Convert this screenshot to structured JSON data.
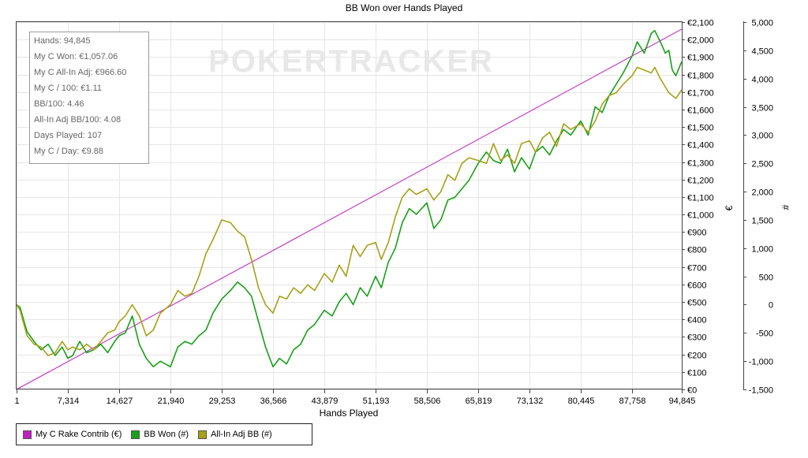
{
  "stats": {
    "hands": "Hands: 94,845",
    "won": "My C Won: €1,057.06",
    "allin_adj": "My C All-In Adj: €966.60",
    "per100": "My C / 100: €1.11",
    "bb100": "BB/100: 4.46",
    "allin_bb100": "All-In Adj BB/100: 4.08",
    "days": "Days Played: 107",
    "perday": "My C / Day: €9.88"
  },
  "watermark": "POKERTRACKER",
  "legend": {
    "rake": "My C Rake Contrib (€)",
    "bbwon": "BB Won (#)",
    "allin": "All-In Adj BB (#)"
  },
  "colors": {
    "rake": "#c020c0",
    "bbwon": "#18a018",
    "allin": "#a8a018",
    "grid": "#e6e6e6"
  },
  "chart_data": {
    "type": "line",
    "title": "BB Won over Hands Played",
    "xlabel": "Hands Played",
    "ylabel_left": "€",
    "ylabel_right": "#",
    "xlim": [
      1,
      94845
    ],
    "ylim_left": [
      0,
      2100
    ],
    "ylim_right": [
      -1500,
      5000
    ],
    "x_ticks": [
      1,
      7314,
      14627,
      21940,
      29253,
      36566,
      43879,
      51193,
      58506,
      65819,
      73132,
      80445,
      87758,
      94845
    ],
    "x_tick_labels": [
      "1",
      "7,314",
      "14,627",
      "21,940",
      "29,253",
      "36,566",
      "43,879",
      "51,193",
      "58,506",
      "65,819",
      "73,132",
      "80,445",
      "87,758",
      "94,845"
    ],
    "y_left_ticks": [
      0,
      100,
      200,
      300,
      400,
      500,
      600,
      700,
      800,
      900,
      1000,
      1100,
      1200,
      1300,
      1400,
      1500,
      1600,
      1700,
      1800,
      1900,
      2000,
      2100
    ],
    "y_left_tick_labels": [
      "€0",
      "€100",
      "€200",
      "€300",
      "€400",
      "€500",
      "€600",
      "€700",
      "€800",
      "€900",
      "€1,000",
      "€1,100",
      "€1,200",
      "€1,300",
      "€1,400",
      "€1,500",
      "€1,600",
      "€1,700",
      "€1,800",
      "€1,900",
      "€2,000",
      "€2,100"
    ],
    "y_right_ticks": [
      -1500,
      -1000,
      -500,
      0,
      500,
      1000,
      1500,
      2000,
      2500,
      3000,
      3500,
      4000,
      4500,
      5000
    ],
    "y_right_tick_labels": [
      "-1,500",
      "-1,000",
      "-500",
      "0",
      "500",
      "1,000",
      "1,500",
      "2,000",
      "2,500",
      "3,000",
      "3,500",
      "4,000",
      "4,500",
      "5,000"
    ],
    "grid": true,
    "legend_position": "bottom-left",
    "series": [
      {
        "name": "My C Rake Contrib (€)",
        "axis": "left",
        "x": [
          1,
          94845
        ],
        "y": [
          0,
          2060
        ]
      },
      {
        "name": "BB Won (#)",
        "axis": "right",
        "x": [
          1,
          500,
          1500,
          2500,
          3500,
          4500,
          5500,
          6500,
          7314,
          8000,
          9000,
          10000,
          11000,
          12000,
          13000,
          14000,
          14627,
          15500,
          16500,
          17500,
          18500,
          19500,
          20500,
          21940,
          23000,
          24000,
          25000,
          26000,
          27000,
          28000,
          29253,
          30500,
          31500,
          32500,
          33500,
          34500,
          35500,
          36566,
          37500,
          38500,
          39500,
          40500,
          41500,
          42500,
          43879,
          45000,
          46000,
          47000,
          48000,
          49000,
          50000,
          51193,
          52000,
          53000,
          54000,
          55000,
          56000,
          57000,
          58506,
          59500,
          60500,
          61500,
          62500,
          63500,
          64500,
          65819,
          67000,
          68000,
          69000,
          70000,
          71000,
          72000,
          73132,
          74000,
          75000,
          76000,
          77000,
          78000,
          79000,
          80445,
          81500,
          82500,
          83500,
          84500,
          85500,
          86500,
          87758,
          88500,
          89500,
          90500,
          91000,
          91800,
          92500,
          93000,
          93500,
          94000,
          94845
        ],
        "y": [
          0,
          -50,
          -480,
          -650,
          -800,
          -700,
          -900,
          -750,
          -950,
          -900,
          -650,
          -850,
          -800,
          -700,
          -850,
          -650,
          -550,
          -500,
          -200,
          -700,
          -950,
          -1100,
          -1000,
          -1100,
          -750,
          -650,
          -700,
          -550,
          -450,
          -150,
          100,
          250,
          400,
          300,
          150,
          -300,
          -750,
          -1100,
          -950,
          -1050,
          -800,
          -700,
          -450,
          -350,
          -100,
          -200,
          50,
          200,
          0,
          300,
          150,
          500,
          300,
          750,
          1000,
          1450,
          1700,
          1600,
          1800,
          1350,
          1500,
          1850,
          1900,
          2050,
          2200,
          2500,
          2700,
          2550,
          2500,
          2750,
          2350,
          2600,
          2400,
          2700,
          2800,
          2650,
          2900,
          3100,
          3000,
          3250,
          3000,
          3500,
          3400,
          3700,
          3900,
          4100,
          4400,
          4650,
          4450,
          4800,
          4850,
          4650,
          4450,
          4500,
          4150,
          4050,
          4300
        ]
      },
      {
        "name": "All-In Adj BB (#)",
        "axis": "right",
        "x": [
          1,
          500,
          1500,
          2500,
          3500,
          4500,
          5500,
          6500,
          7314,
          8000,
          9000,
          10000,
          11000,
          12000,
          13000,
          14000,
          14627,
          15500,
          16500,
          17500,
          18500,
          19500,
          20500,
          21940,
          23000,
          24000,
          25000,
          26000,
          27000,
          28000,
          29253,
          30500,
          31500,
          32500,
          33500,
          34500,
          35500,
          36566,
          37500,
          38500,
          39500,
          40500,
          41500,
          42500,
          43879,
          45000,
          46000,
          47000,
          48000,
          49000,
          50000,
          51193,
          52000,
          53000,
          54000,
          55000,
          56000,
          57000,
          58506,
          59500,
          60500,
          61500,
          62500,
          63500,
          64500,
          65819,
          67000,
          68000,
          69000,
          70000,
          71000,
          72000,
          73132,
          74000,
          75000,
          76000,
          77000,
          78000,
          79000,
          80445,
          81500,
          82500,
          83500,
          84500,
          85500,
          86500,
          87758,
          88500,
          89500,
          90500,
          91000,
          91800,
          92500,
          93000,
          93500,
          94000,
          94845
        ],
        "y": [
          0,
          -100,
          -550,
          -700,
          -750,
          -900,
          -850,
          -650,
          -800,
          -750,
          -800,
          -700,
          -800,
          -650,
          -500,
          -450,
          -300,
          -200,
          0,
          -200,
          -550,
          -450,
          -150,
          0,
          250,
          150,
          200,
          500,
          900,
          1150,
          1500,
          1450,
          1300,
          1200,
          800,
          300,
          0,
          -150,
          150,
          100,
          300,
          200,
          350,
          250,
          550,
          400,
          700,
          500,
          1050,
          850,
          1050,
          1100,
          800,
          1100,
          1550,
          1900,
          2050,
          1950,
          2050,
          1850,
          2000,
          2300,
          2200,
          2500,
          2600,
          2550,
          2500,
          2850,
          2550,
          2650,
          2500,
          2850,
          2900,
          2700,
          2950,
          3050,
          2800,
          3200,
          3100,
          3200,
          3050,
          3250,
          3550,
          3700,
          3750,
          3900,
          4050,
          4200,
          4150,
          4100,
          4200,
          4000,
          3850,
          3750,
          3700,
          3650,
          3800
        ]
      }
    ]
  }
}
